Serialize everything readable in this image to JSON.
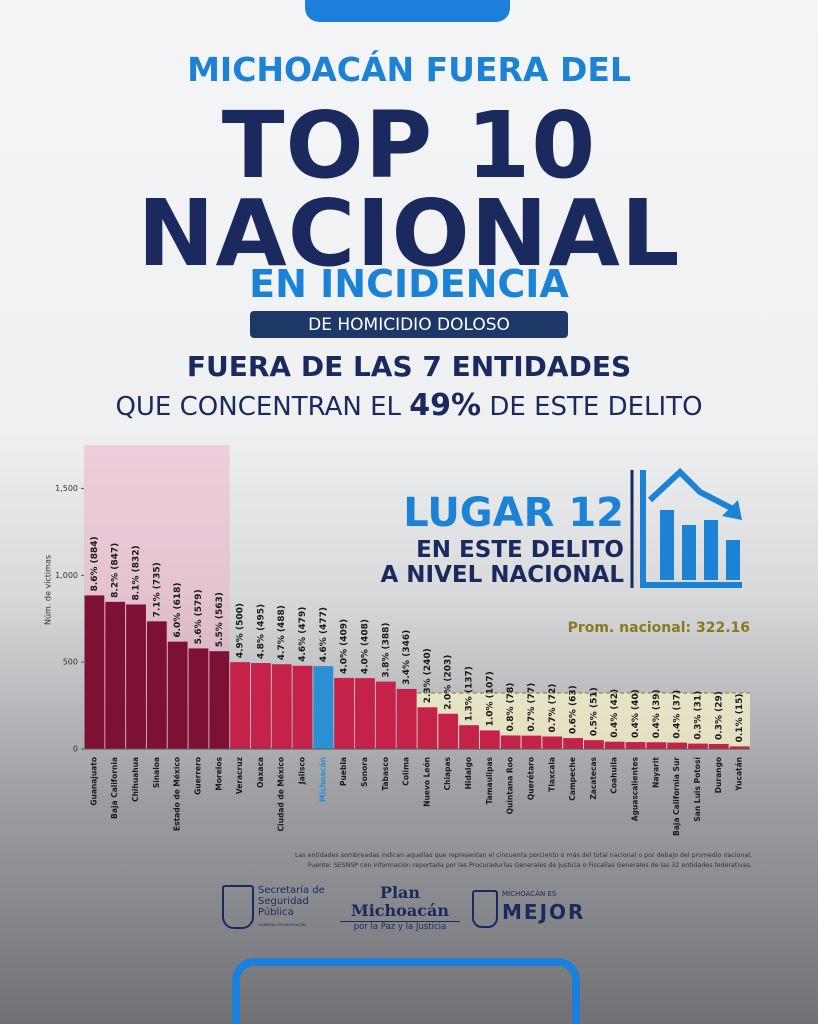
{
  "header": {
    "kicker": "MICHOACÁN FUERA DEL",
    "title_1": "TOP 10",
    "title_2": "NACIONAL",
    "subtitle": "EN INCIDENCIA",
    "pill": "DE HOMICIDIO DOLOSO",
    "line_1": "FUERA DE LAS 7 ENTIDADES",
    "line_2a": "QUE CONCENTRAN EL",
    "line_2b": "49%",
    "line_2c": "DE ESTE DELITO"
  },
  "callout": {
    "rank": "LUGAR 12",
    "line_1": "EN ESTE DELITO",
    "line_2": "A NIVEL NACIONAL"
  },
  "chart_data": {
    "type": "bar",
    "ylabel": "Núm. de víctimas",
    "categories": [
      "Guanajuato",
      "Baja California",
      "Chihuahua",
      "Sinaloa",
      "Estado de México",
      "Guerrero",
      "Morelos",
      "Veracruz",
      "Oaxaca",
      "Ciudad de México",
      "Jalisco",
      "Michoacán",
      "Puebla",
      "Sonora",
      "Tabasco",
      "Colima",
      "Nuevo León",
      "Chiapas",
      "Hidalgo",
      "Tamaulipas",
      "Quintana Roo",
      "Querétaro",
      "Tlaxcala",
      "Campeche",
      "Zacatecas",
      "Coahuila",
      "Aguascalientes",
      "Nayarit",
      "Baja California Sur",
      "San Luis Potosí",
      "Durango",
      "Yucatán"
    ],
    "values": [
      884,
      847,
      832,
      735,
      618,
      579,
      563,
      500,
      495,
      488,
      479,
      477,
      409,
      408,
      388,
      346,
      240,
      203,
      137,
      107,
      78,
      77,
      72,
      63,
      51,
      42,
      40,
      39,
      37,
      31,
      29,
      15
    ],
    "value_labels": [
      "8.6% (884)",
      "8.2% (847)",
      "8.1% (832)",
      "7.1% (735)",
      "6.0% (618)",
      "5.6% (579)",
      "5.5% (563)",
      "4.9% (500)",
      "4.8% (495)",
      "4.7% (488)",
      "4.6% (479)",
      "4.6% (477)",
      "4.0% (409)",
      "4.0% (408)",
      "3.8% (388)",
      "3.4% (346)",
      "2.3% (240)",
      "2.0% (203)",
      "1.3% (137)",
      "1.0% (107)",
      "0.8% (78)",
      "0.7% (77)",
      "0.7% (72)",
      "0.6% (63)",
      "0.5% (51)",
      "0.4% (42)",
      "0.4% (40)",
      "0.4% (39)",
      "0.4% (37)",
      "0.3% (31)",
      "0.3% (29)",
      "0.1% (15)"
    ],
    "colors": [
      "#7c1134",
      "#7c1134",
      "#7c1134",
      "#7c1134",
      "#7c1134",
      "#7c1134",
      "#7c1134",
      "#c42249",
      "#c42249",
      "#c42249",
      "#c42249",
      "#2b8fd3",
      "#c42249",
      "#c42249",
      "#c42249",
      "#c42249",
      "#c42249",
      "#c42249",
      "#c42249",
      "#c42249",
      "#c42249",
      "#c42249",
      "#c42249",
      "#c42249",
      "#c42249",
      "#c42249",
      "#c42249",
      "#c42249",
      "#c42249",
      "#c42249",
      "#c42249",
      "#c42249"
    ],
    "ylim": [
      0,
      1750
    ],
    "yticks": [
      0,
      500,
      {
        "value": 1000,
        "label": "1,000"
      },
      {
        "value": 1500,
        "label": "1,500"
      }
    ],
    "average": {
      "value": 322.16,
      "label": "Prom. nacional: 322.16"
    }
  },
  "footer": {
    "note_1": "Las entidades sombreadas indican aquellas que representan el cincuenta porciento o más del total nacional o por debajo del promedio nacional.",
    "note_2": "Fuente: SESNSP con información reportada por las Procuradurías Generales de Justicia o Fiscalías Generales de las 32 entidades federativas.",
    "logo_1": "Secretaría de Seguridad Pública",
    "logo_1_sub": "GOBIERNO DE MICHOACÁN",
    "logo_2": "Plan Michoacán",
    "logo_2_sub": "por la Paz y la Justicia",
    "logo_3_top": "MICHOACÁN ES",
    "logo_3": "MEJOR"
  }
}
